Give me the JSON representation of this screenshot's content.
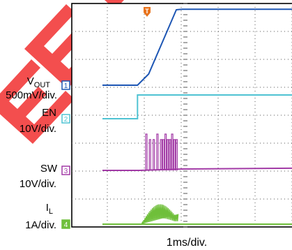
{
  "chart_data": {
    "type": "line",
    "title": "",
    "xlabel": "1ms/div.",
    "time_per_div_ms": 1,
    "divisions": {
      "x": 10,
      "y": 8
    },
    "grid": true,
    "trigger_marker": {
      "label": "T",
      "time_ms": 0,
      "color": "#e8731c"
    },
    "channels": [
      {
        "id": "1",
        "name": "V",
        "subscript": "OUT",
        "scale": "500mV/div.",
        "color": "#1d56b4",
        "unit": "V",
        "marker_level_div": 0.0,
        "points": [
          [
            -1.0,
            0.0
          ],
          [
            -0.05,
            0.0
          ],
          [
            0.25,
            0.4
          ],
          [
            1.0,
            2.7
          ],
          [
            1.15,
            2.72
          ],
          [
            10.0,
            2.72
          ]
        ]
      },
      {
        "id": "2",
        "name": "EN",
        "subscript": "",
        "scale": "10V/div.",
        "color": "#4fc3d3",
        "unit": "V",
        "marker_level_div": 0.0,
        "points": [
          [
            -1.0,
            0.0
          ],
          [
            -0.05,
            0.0
          ],
          [
            -0.05,
            0.85
          ],
          [
            10.0,
            0.85
          ]
        ]
      },
      {
        "id": "3",
        "name": "SW",
        "subscript": "",
        "scale": "10V/div.",
        "color": "#a23aa6",
        "unit": "V",
        "marker_level_div": 0.0,
        "burst": {
          "start_ms": 0.05,
          "end_ms": 1.05,
          "peak_div": 1.3
        },
        "points": [
          [
            -1.0,
            0.0
          ],
          [
            0.0,
            0.0
          ],
          [
            1.2,
            0.05
          ],
          [
            10.0,
            0.08
          ]
        ]
      },
      {
        "id": "4",
        "name": "I",
        "subscript": "L",
        "scale": "1A/div.",
        "color": "#6fbf3a",
        "unit": "A",
        "marker_level_div": 0.0,
        "burst": {
          "start_ms": 0.05,
          "end_ms": 1.05,
          "peak_div": 0.9
        },
        "points": [
          [
            -1.0,
            0.0
          ],
          [
            10.0,
            0.0
          ]
        ]
      }
    ]
  },
  "watermark": {
    "text": "EE"
  }
}
